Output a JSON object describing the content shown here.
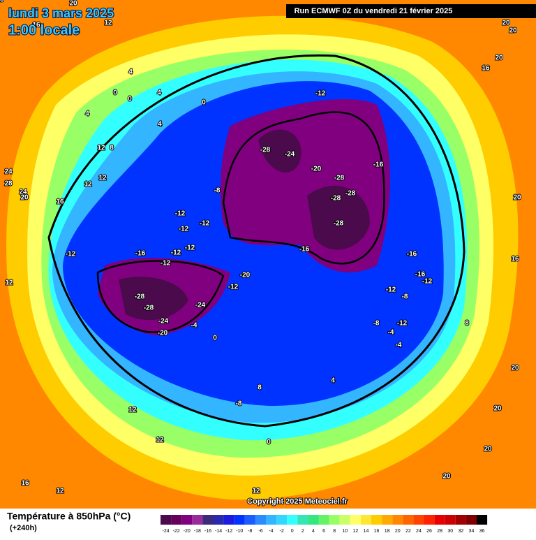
{
  "header": {
    "date": "lundi 3 mars 2025",
    "time": "1:00 locale",
    "run": "Run ECMWF 0Z du vendredi 21 février 2025"
  },
  "copyright": "Copyright 2025 Meteociel.fr",
  "legend": {
    "title": "Température à 850hPa (°C)",
    "lead": "(+240h)",
    "ticks": [
      -24,
      -22,
      -20,
      -18,
      -16,
      -14,
      -12,
      -10,
      -8,
      -6,
      -4,
      -2,
      0,
      2,
      4,
      6,
      8,
      10,
      12,
      14,
      16,
      18,
      20,
      22,
      24,
      26,
      28,
      30,
      32,
      34,
      36
    ],
    "colors": [
      "#4b0a4b",
      "#66005a",
      "#800080",
      "#9a2a9a",
      "#3c2a7a",
      "#2a2ab0",
      "#1c1ce0",
      "#0033ff",
      "#1a5cff",
      "#2e8bff",
      "#33b5ff",
      "#33d6ff",
      "#33ffff",
      "#33e6b3",
      "#33e680",
      "#66f266",
      "#99ff66",
      "#ccff66",
      "#ffff66",
      "#ffe633",
      "#ffcc00",
      "#ffaa00",
      "#ff8800",
      "#ff6600",
      "#ff4400",
      "#ff2200",
      "#e60000",
      "#cc0000",
      "#a00000",
      "#800000",
      "#000000"
    ]
  },
  "map_labels": [
    "12",
    "16",
    "20",
    "20",
    "20",
    "16",
    "20",
    "4",
    "0",
    "4",
    "0",
    "4",
    "0",
    "4",
    "12",
    "8",
    "12",
    "12",
    "24",
    "28",
    "24",
    "20",
    "16",
    "12",
    "-12",
    "-28",
    "-24",
    "-20",
    "-16",
    "-28",
    "-28",
    "-28",
    "-28",
    "-16",
    "-12",
    "-12",
    "-12",
    "-12",
    "-12",
    "-12",
    "-16",
    "-12",
    "-20",
    "-12",
    "-28",
    "-28",
    "-24",
    "-24",
    "-20",
    "-4",
    "0",
    "-8",
    "-16",
    "-16",
    "-12",
    "-12",
    "-8",
    "-8",
    "-12",
    "-4",
    "-4",
    "8",
    "-8",
    "4",
    "8",
    "12",
    "12",
    "0",
    "16",
    "12",
    "12",
    "20",
    "20",
    "20",
    "20",
    "16",
    "20",
    "20"
  ]
}
